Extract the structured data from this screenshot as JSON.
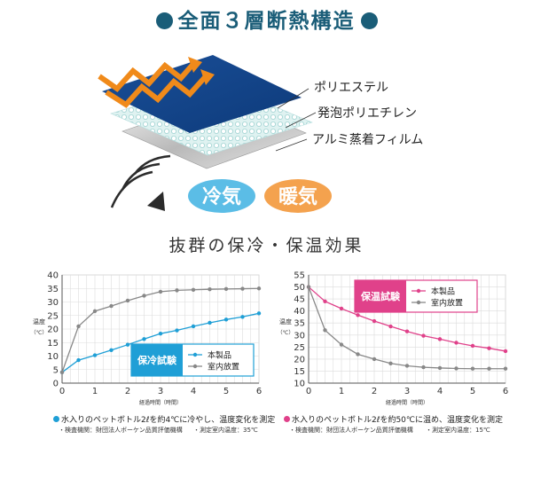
{
  "header": {
    "title": "全面３層断熱構造"
  },
  "layers": [
    {
      "label": "ポリエステル"
    },
    {
      "label": "発泡ポリエチレン"
    },
    {
      "label": "アルミ蒸着フィルム"
    }
  ],
  "badges": {
    "cold": "冷気",
    "warm": "暖気"
  },
  "colors": {
    "title": "#1a5d78",
    "cold_series": "#1f9fd6",
    "warm_series": "#e0418a",
    "room": "#888888",
    "cold_badge": "#5bbde6",
    "warm_badge": "#f4a24e"
  },
  "effect_title": "抜群の保冷・保温効果",
  "chart_data": [
    {
      "type": "line",
      "legend_title": "保冷試験",
      "x": [
        0,
        0.5,
        1,
        1.5,
        2,
        2.5,
        3,
        3.5,
        4,
        4.5,
        5,
        5.5,
        6
      ],
      "series": [
        {
          "name": "本製品",
          "values": [
            4,
            8.5,
            10.3,
            12.2,
            14.2,
            16.3,
            18.3,
            19.5,
            21,
            22.3,
            23.5,
            24.5,
            25.8
          ]
        },
        {
          "name": "室内放置",
          "values": [
            4,
            21,
            26.6,
            28.5,
            30.5,
            32.3,
            33.8,
            34.3,
            34.5,
            34.7,
            34.8,
            34.9,
            35
          ]
        }
      ],
      "xlim": [
        0,
        6
      ],
      "ylim": [
        0,
        40
      ],
      "xticks": [
        "0",
        "1",
        "2",
        "3",
        "4",
        "5",
        "6"
      ],
      "yticks": [
        "0",
        "5",
        "10",
        "15",
        "20",
        "25",
        "30",
        "35",
        "40"
      ],
      "xlabel": "経過時間（時間）",
      "ylabel": "温度",
      "yunit": "（℃）",
      "legend": "bottom-right",
      "note": "水入りのペットボトル2ℓを約4℃に冷やし、温度変化を測定",
      "sub_left": "・検査機関：財団法人ボーケン品質評価機構",
      "sub_right": "・測定室内温度：35℃"
    },
    {
      "type": "line",
      "legend_title": "保温試験",
      "x": [
        0,
        0.5,
        1,
        1.5,
        2,
        2.5,
        3,
        3.5,
        4,
        4.5,
        5,
        5.5,
        6
      ],
      "series": [
        {
          "name": "本製品",
          "values": [
            50,
            44,
            41,
            38.3,
            35.8,
            33.6,
            31.5,
            29.7,
            28.3,
            26.8,
            25.5,
            24.5,
            23.3
          ]
        },
        {
          "name": "室内放置",
          "values": [
            50,
            32,
            26,
            22,
            20,
            18.2,
            17.2,
            16.6,
            16.3,
            16.1,
            16,
            16,
            16
          ]
        }
      ],
      "xlim": [
        0,
        6
      ],
      "ylim": [
        10,
        55
      ],
      "xticks": [
        "0",
        "1",
        "2",
        "3",
        "4",
        "5",
        "6"
      ],
      "yticks": [
        "10",
        "15",
        "20",
        "25",
        "30",
        "35",
        "40",
        "45",
        "50",
        "55"
      ],
      "xlabel": "経過時間（時間）",
      "ylabel": "温度",
      "yunit": "（℃）",
      "legend": "top-right",
      "note": "水入りのペットボトル2ℓを約50℃に温め、温度変化を測定",
      "sub_left": "・検査機関：財団法人ボーケン品質評価機構",
      "sub_right": "・測定室内温度：15℃"
    }
  ]
}
